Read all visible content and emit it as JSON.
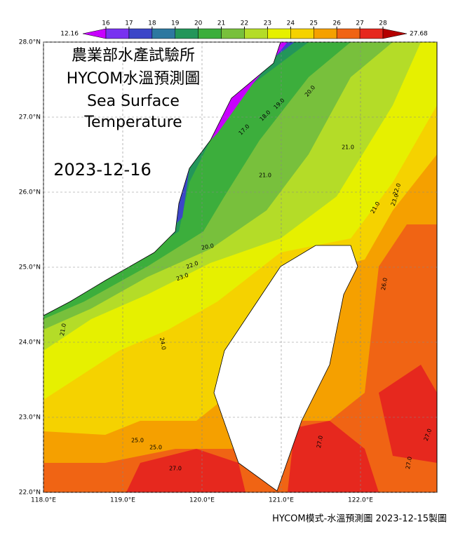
{
  "title_lines": [
    "農業部水產試驗所",
    "HYCOM水溫預測圖",
    "Sea Surface",
    "Temperature"
  ],
  "date": "2023-12-16",
  "colorbar": {
    "min": 12.16,
    "max": 27.68,
    "ticks": [
      16,
      17,
      18,
      19,
      20,
      21,
      22,
      23,
      24,
      25,
      26,
      27,
      28
    ],
    "colors": [
      "#c800ff",
      "#7832f0",
      "#3c46c8",
      "#2d78a0",
      "#23965a",
      "#3cae3c",
      "#78c03c",
      "#b4dc28",
      "#e6f000",
      "#f5d200",
      "#f5a000",
      "#f06414",
      "#e6281e",
      "#b40000"
    ]
  },
  "lat_ticks": [
    {
      "value": 28,
      "label": "28.0°N"
    },
    {
      "value": 27,
      "label": "27.0°N"
    },
    {
      "value": 26,
      "label": "26.0°N"
    },
    {
      "value": 25,
      "label": "25.0°N"
    },
    {
      "value": 24,
      "label": "24.0°N"
    },
    {
      "value": 23,
      "label": "23.0°N"
    },
    {
      "value": 22,
      "label": "22.0°N"
    }
  ],
  "lon_ticks": [
    {
      "value": 118,
      "label": "118.0°E"
    },
    {
      "value": 119,
      "label": "119.0°E"
    },
    {
      "value": 120,
      "label": "120.0°E"
    },
    {
      "value": 121,
      "label": "121.0°E"
    },
    {
      "value": 122,
      "label": "122.0°E"
    }
  ],
  "contour_labels": [
    {
      "value": 20,
      "label": "20.0"
    },
    {
      "value": 19,
      "label": "19.0"
    },
    {
      "value": 18,
      "label": "18.0"
    },
    {
      "value": 17,
      "label": "17.0"
    },
    {
      "value": 21,
      "label": "21.0"
    },
    {
      "value": 21,
      "label": "21.0"
    },
    {
      "value": 21,
      "label": "21.0"
    },
    {
      "value": 20,
      "label": "20.0"
    },
    {
      "value": 22,
      "label": "22.0"
    },
    {
      "value": 23,
      "label": "23.0"
    },
    {
      "value": 22,
      "label": "22.0"
    },
    {
      "value": 23,
      "label": "23.0"
    },
    {
      "value": 24,
      "label": "24.0"
    },
    {
      "value": 25,
      "label": "25.0"
    },
    {
      "value": 25,
      "label": "25.0"
    },
    {
      "value": 27,
      "label": "27.0"
    },
    {
      "value": 21,
      "label": "21.0"
    },
    {
      "value": 27,
      "label": "27.0"
    },
    {
      "value": 26,
      "label": "26.0"
    },
    {
      "value": 27,
      "label": "27.0"
    },
    {
      "value": 27,
      "label": "27.0"
    }
  ],
  "footer": "HYCOM模式-水溫預測圖 2023-12-15製圖"
}
